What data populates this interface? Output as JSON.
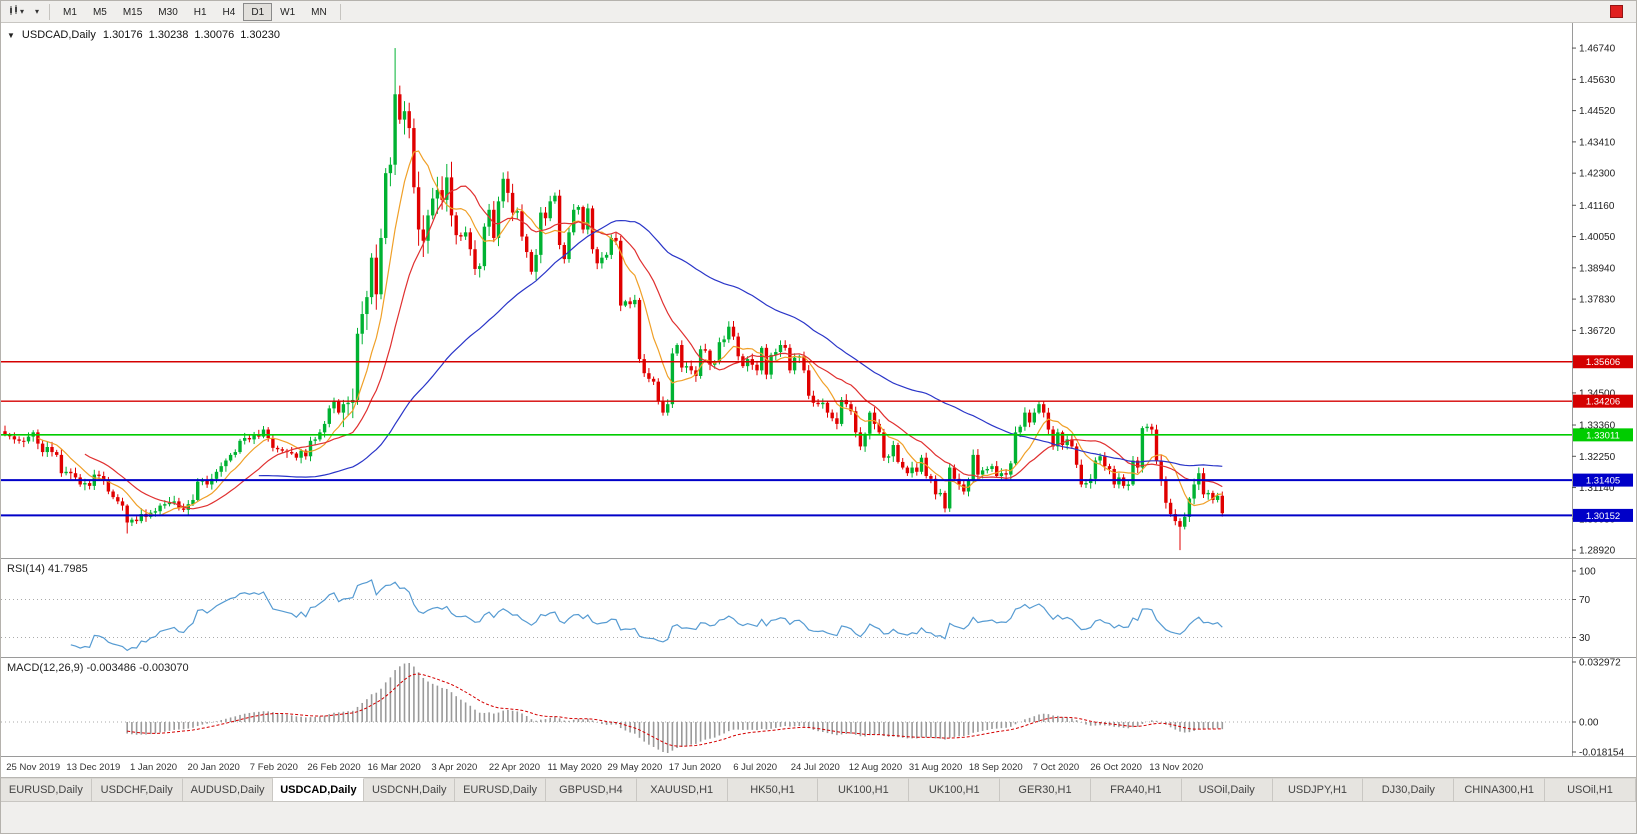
{
  "toolbar": {
    "timeframes": [
      "M1",
      "M5",
      "M15",
      "M30",
      "H1",
      "H4",
      "D1",
      "W1",
      "MN"
    ],
    "active_timeframe": "D1"
  },
  "chart": {
    "header": {
      "title": "USDCAD,Daily",
      "open": "1.30176",
      "high": "1.30238",
      "low": "1.30076",
      "close": "1.30230"
    },
    "price_axis_labels": [
      "1.46740",
      "1.45630",
      "1.44520",
      "1.43410",
      "1.42300",
      "1.41160",
      "1.40050",
      "1.38940",
      "1.37830",
      "1.36720",
      "1.35610",
      "1.34500",
      "1.33360",
      "1.32250",
      "1.31140",
      "1.30030",
      "1.28920"
    ],
    "date_axis_labels": [
      "25 Nov 2019",
      "13 Dec 2019",
      "1 Jan 2020",
      "20 Jan 2020",
      "7 Feb 2020",
      "26 Feb 2020",
      "16 Mar 2020",
      "3 Apr 2020",
      "22 Apr 2020",
      "11 May 2020",
      "29 May 2020",
      "17 Jun 2020",
      "6 Jul 2020",
      "24 Jul 2020",
      "12 Aug 2020",
      "31 Aug 2020",
      "18 Sep 2020",
      "7 Oct 2020",
      "26 Oct 2020",
      "13 Nov 2020"
    ]
  },
  "rsi": {
    "label": "RSI(14) 41.7985",
    "axis": [
      {
        "text": "100",
        "value": 100
      },
      {
        "text": "70",
        "value": 70
      },
      {
        "text": "30",
        "value": 30
      }
    ]
  },
  "macd": {
    "label": "MACD(12,26,9) -0.003486 -0.003070",
    "axis": [
      {
        "text": "0.032972",
        "value": 0.032972
      },
      {
        "text": "0.00",
        "value": 0
      },
      {
        "text": "-0.018154",
        "value": -0.018154
      }
    ]
  },
  "tabs": [
    {
      "label": "EURUSD,Daily",
      "active": false
    },
    {
      "label": "USDCHF,Daily",
      "active": false
    },
    {
      "label": "AUDUSD,Daily",
      "active": false
    },
    {
      "label": "USDCAD,Daily",
      "active": true
    },
    {
      "label": "USDCNH,Daily",
      "active": false
    },
    {
      "label": "EURUSD,Daily",
      "active": false
    },
    {
      "label": "GBPUSD,H4",
      "active": false
    },
    {
      "label": "XAUUSD,H1",
      "active": false
    },
    {
      "label": "HK50,H1",
      "active": false
    },
    {
      "label": "UK100,H1",
      "active": false
    },
    {
      "label": "UK100,H1",
      "active": false
    },
    {
      "label": "GER30,H1",
      "active": false
    },
    {
      "label": "FRA40,H1",
      "active": false
    },
    {
      "label": "USOil,Daily",
      "active": false
    },
    {
      "label": "USDJPY,H1",
      "active": false
    },
    {
      "label": "DJ30,Daily",
      "active": false
    },
    {
      "label": "CHINA300,H1",
      "active": false
    },
    {
      "label": "USOil,H1",
      "active": false
    }
  ],
  "colors": {
    "candle_up": "#00b232",
    "candle_down": "#e00000",
    "rsi_line": "#569bd2",
    "macd_hist": "#9a9a9a",
    "macd_signal": "#d40000",
    "axis_text": "#222222",
    "red_button": "#e02020"
  },
  "chart_data": {
    "type": "candlestick",
    "symbol": "USDCAD",
    "timeframe": "Daily",
    "title": "USDCAD,Daily",
    "ohlc_current": {
      "open": 1.30176,
      "high": 1.30238,
      "low": 1.30076,
      "close": 1.3023
    },
    "x_range": [
      "25 Nov 2019",
      "20 Nov 2020"
    ],
    "y_range": [
      1.2864,
      1.4763
    ],
    "closes": [
      1.3302,
      1.3296,
      1.3285,
      1.328,
      1.3278,
      1.3295,
      1.331,
      1.327,
      1.324,
      1.3258,
      1.324,
      1.323,
      1.3165,
      1.317,
      1.3165,
      1.315,
      1.3125,
      1.313,
      1.312,
      1.316,
      1.3155,
      1.314,
      1.31,
      1.308,
      1.3065,
      1.305,
      1.299,
      1.3,
      1.2995,
      1.302,
      1.301,
      1.3025,
      1.303,
      1.305,
      1.3055,
      1.306,
      1.3065,
      1.304,
      1.3035,
      1.3055,
      1.307,
      1.3135,
      1.314,
      1.3125,
      1.3145,
      1.317,
      1.319,
      1.321,
      1.323,
      1.324,
      1.328,
      1.329,
      1.3285,
      1.33,
      1.3295,
      1.332,
      1.329,
      1.3255,
      1.325,
      1.3245,
      1.324,
      1.3235,
      1.322,
      1.3245,
      1.3225,
      1.328,
      1.3285,
      1.331,
      1.334,
      1.3395,
      1.342,
      1.338,
      1.341,
      1.3415,
      1.3425,
      1.366,
      1.373,
      1.379,
      1.393,
      1.38,
      1.4,
      1.423,
      1.426,
      1.451,
      1.442,
      1.445,
      1.439,
      1.418,
      1.403,
      1.399,
      1.408,
      1.414,
      1.417,
      1.4135,
      1.4215,
      1.408,
      1.401,
      1.4005,
      1.402,
      1.396,
      1.389,
      1.39,
      1.404,
      1.41,
      1.4,
      1.413,
      1.421,
      1.416,
      1.409,
      1.4095,
      1.4005,
      1.395,
      1.388,
      1.394,
      1.409,
      1.407,
      1.413,
      1.415,
      1.3975,
      1.3925,
      1.402,
      1.41,
      1.411,
      1.403,
      1.4105,
      1.396,
      1.391,
      1.393,
      1.394,
      1.4,
      1.399,
      1.376,
      1.3775,
      1.3765,
      1.378,
      1.357,
      1.352,
      1.35,
      1.349,
      1.342,
      1.338,
      1.341,
      1.359,
      1.362,
      1.354,
      1.3545,
      1.353,
      1.351,
      1.3605,
      1.36,
      1.355,
      1.356,
      1.363,
      1.364,
      1.3685,
      1.365,
      1.358,
      1.3545,
      1.357,
      1.355,
      1.353,
      1.361,
      1.3515,
      1.3585,
      1.3595,
      1.362,
      1.361,
      1.353,
      1.3575,
      1.358,
      1.353,
      1.344,
      1.3415,
      1.341,
      1.3415,
      1.338,
      1.336,
      1.334,
      1.3425,
      1.341,
      1.3385,
      1.331,
      1.326,
      1.3305,
      1.338,
      1.334,
      1.331,
      1.322,
      1.3225,
      1.3265,
      1.3205,
      1.3185,
      1.3165,
      1.3185,
      1.317,
      1.322,
      1.3155,
      1.3145,
      1.309,
      1.3095,
      1.304,
      1.3185,
      1.3145,
      1.3125,
      1.31,
      1.314,
      1.323,
      1.316,
      1.3175,
      1.318,
      1.319,
      1.3155,
      1.3165,
      1.316,
      1.32,
      1.331,
      1.333,
      1.338,
      1.3345,
      1.338,
      1.341,
      1.338,
      1.332,
      1.326,
      1.331,
      1.3265,
      1.3285,
      1.326,
      1.3195,
      1.3125,
      1.313,
      1.3145,
      1.321,
      1.3225,
      1.319,
      1.318,
      1.3125,
      1.315,
      1.312,
      1.3125,
      1.321,
      1.3185,
      1.3325,
      1.333,
      1.332,
      1.321,
      1.314,
      1.306,
      1.302,
      1.2995,
      1.2975,
      1.301,
      1.3075,
      1.3125,
      1.3165,
      1.309,
      1.3095,
      1.307,
      1.3085,
      1.3023
    ],
    "high_overrides": {
      "83": 1.4674
    },
    "low_overrides": {
      "26": 1.2951,
      "250": 1.2892
    },
    "volatile_ranges": [
      [
        72,
        95,
        2.8
      ],
      [
        96,
        115,
        1.6
      ]
    ],
    "hlines": [
      {
        "label": "1.35606",
        "value": 1.35606,
        "color": "#d40000",
        "width": 1.4
      },
      {
        "label": "1.34206",
        "value": 1.34206,
        "color": "#d40000",
        "width": 1.4
      },
      {
        "label": "1.33011",
        "value": 1.33011,
        "color": "#00cc00",
        "width": 1.6
      },
      {
        "label": "1.31405",
        "value": 1.31405,
        "color": "#0000c8",
        "width": 2
      },
      {
        "label": "1.30152",
        "value": 1.30152,
        "color": "#0000c8",
        "width": 2
      }
    ],
    "indicators": {
      "moving_averages": [
        {
          "period": 8,
          "color": "#f0a028"
        },
        {
          "period": 18,
          "color": "#e03030"
        },
        {
          "period": 55,
          "color": "#2a35c8"
        }
      ],
      "rsi": {
        "period": 14,
        "current": 41.7985,
        "levels": [
          70,
          30
        ]
      },
      "macd": {
        "fast": 12,
        "slow": 26,
        "signal": 9,
        "current": -0.003486,
        "signal_current": -0.00307
      }
    }
  }
}
